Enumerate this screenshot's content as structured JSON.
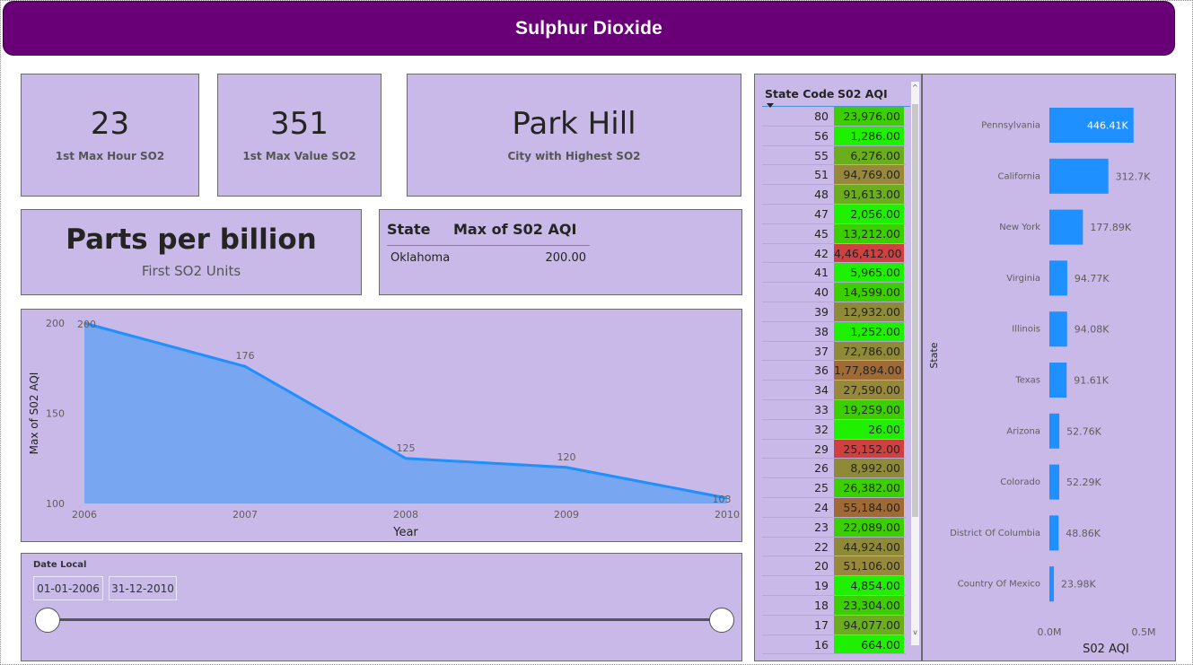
{
  "banner": {
    "title": "Sulphur Dioxide"
  },
  "kpis": [
    {
      "value": "23",
      "label": "1st Max Hour SO2"
    },
    {
      "value": "351",
      "label": "1st Max Value SO2"
    },
    {
      "value": "Park Hill",
      "label": "City with Highest SO2"
    }
  ],
  "units": {
    "value": "Parts per billion",
    "label": "First SO2 Units"
  },
  "max_table": {
    "headers": [
      "State",
      "Max of S02 AQI"
    ],
    "rows": [
      {
        "state": "Oklahoma",
        "value": "200.00"
      }
    ]
  },
  "line_chart": {
    "ylabel": "Max of S02 AQI",
    "xlabel": "Year",
    "color": "#1e90ff",
    "fill": "#78a6f0"
  },
  "date_slicer": {
    "title": "Date Local",
    "start": "01-01-2006",
    "end": "31-12-2010"
  },
  "state_table": {
    "headers": [
      "State Code",
      "S02 AQI"
    ],
    "scroll_up": "^",
    "scroll_down": "v",
    "rows": [
      {
        "code": "80",
        "aqi": "23,976.00",
        "color": "#3ccf00"
      },
      {
        "code": "56",
        "aqi": "1,286.00",
        "color": "#1ef000"
      },
      {
        "code": "55",
        "aqi": "6,276.00",
        "color": "#6aae1e"
      },
      {
        "code": "51",
        "aqi": "94,769.00",
        "color": "#97883a"
      },
      {
        "code": "48",
        "aqi": "91,613.00",
        "color": "#6aae1e"
      },
      {
        "code": "47",
        "aqi": "2,056.00",
        "color": "#1ef000"
      },
      {
        "code": "45",
        "aqi": "13,212.00",
        "color": "#3ccf00"
      },
      {
        "code": "42",
        "aqi": "4,46,412.00",
        "color": "#d04040"
      },
      {
        "code": "41",
        "aqi": "5,965.00",
        "color": "#1ef000"
      },
      {
        "code": "40",
        "aqi": "14,599.00",
        "color": "#3ccf00"
      },
      {
        "code": "39",
        "aqi": "12,932.00",
        "color": "#8f8a38"
      },
      {
        "code": "38",
        "aqi": "1,252.00",
        "color": "#1ef000"
      },
      {
        "code": "37",
        "aqi": "72,786.00",
        "color": "#8f8a38"
      },
      {
        "code": "36",
        "aqi": "1,77,894.00",
        "color": "#a06a34"
      },
      {
        "code": "34",
        "aqi": "27,590.00",
        "color": "#97883a"
      },
      {
        "code": "33",
        "aqi": "19,259.00",
        "color": "#3ccf00"
      },
      {
        "code": "32",
        "aqi": "26.00",
        "color": "#1ef000"
      },
      {
        "code": "29",
        "aqi": "25,152.00",
        "color": "#d04040"
      },
      {
        "code": "26",
        "aqi": "8,992.00",
        "color": "#8f8a38"
      },
      {
        "code": "25",
        "aqi": "26,382.00",
        "color": "#3ccf00"
      },
      {
        "code": "24",
        "aqi": "55,184.00",
        "color": "#a06a34"
      },
      {
        "code": "23",
        "aqi": "22,089.00",
        "color": "#3ccf00"
      },
      {
        "code": "22",
        "aqi": "44,924.00",
        "color": "#8f8a38"
      },
      {
        "code": "20",
        "aqi": "51,106.00",
        "color": "#97883a"
      },
      {
        "code": "19",
        "aqi": "4,854.00",
        "color": "#1ef000"
      },
      {
        "code": "18",
        "aqi": "23,304.00",
        "color": "#3ccf00"
      },
      {
        "code": "17",
        "aqi": "94,077.00",
        "color": "#6aae1e"
      },
      {
        "code": "16",
        "aqi": "664.00",
        "color": "#1ef000"
      }
    ]
  },
  "chart_data": [
    {
      "type": "area",
      "x": [
        2006,
        2007,
        2008,
        2009,
        2010
      ],
      "values": [
        200,
        176,
        125,
        120,
        103
      ],
      "data_labels": [
        "200",
        "176",
        "125",
        "120",
        "103"
      ],
      "x_tick_labels": [
        "2006",
        "2007",
        "2008",
        "2009",
        "2010"
      ],
      "y_tick_labels": [
        "200",
        "150",
        "100"
      ],
      "y_ticks": [
        200,
        150,
        100
      ],
      "xlabel": "Year",
      "ylabel": "Max of S02 AQI",
      "ylim": [
        100,
        200
      ],
      "grid": false
    },
    {
      "type": "bar",
      "orientation": "horizontal",
      "categories": [
        "Pennsylvania",
        "California",
        "New York",
        "Virginia",
        "Illinois",
        "Texas",
        "Arizona",
        "Colorado",
        "District Of Columbia",
        "Country Of Mexico"
      ],
      "values": [
        446410,
        312700,
        177890,
        94770,
        94080,
        91610,
        52760,
        52290,
        48860,
        23980
      ],
      "data_labels": [
        "446.41K",
        "312.7K",
        "177.89K",
        "94.77K",
        "94.08K",
        "91.61K",
        "52.76K",
        "52.29K",
        "48.86K",
        "23.98K"
      ],
      "x_tick_labels": [
        "0.0M",
        "0.5M"
      ],
      "x_ticks": [
        0,
        500000
      ],
      "xlabel": "S02 AQI",
      "ylabel": "State",
      "xlim": [
        0,
        500000
      ],
      "color": "#1e90ff",
      "grid": false
    }
  ]
}
